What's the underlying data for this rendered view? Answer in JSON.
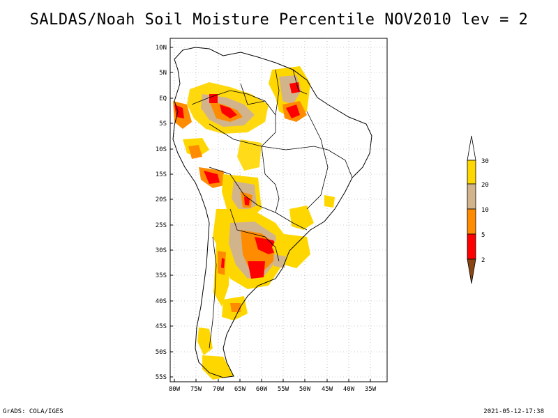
{
  "title": "SALDAS/Noah Soil Moisture Percentile NOV2010 lev = 2",
  "footer": {
    "left": "GrADS: COLA/IGES",
    "right": "2021-05-12-17:38"
  },
  "map": {
    "lat_labels": [
      "10N",
      "5N",
      "EQ",
      "5S",
      "10S",
      "15S",
      "20S",
      "25S",
      "30S",
      "35S",
      "40S",
      "45S",
      "50S",
      "55S"
    ],
    "lon_labels": [
      "80W",
      "75W",
      "70W",
      "65W",
      "60W",
      "55W",
      "50W",
      "45W",
      "40W",
      "35W"
    ]
  },
  "legend": {
    "labels": [
      "30",
      "20",
      "10",
      "5",
      "2"
    ],
    "colors": {
      "above_30": "#ffffff",
      "20_30": "#ffd700",
      "10_20": "#d2b48c",
      "5_10": "#ff8c00",
      "2_5": "#ff0000",
      "below_2": "#8b4513"
    }
  }
}
